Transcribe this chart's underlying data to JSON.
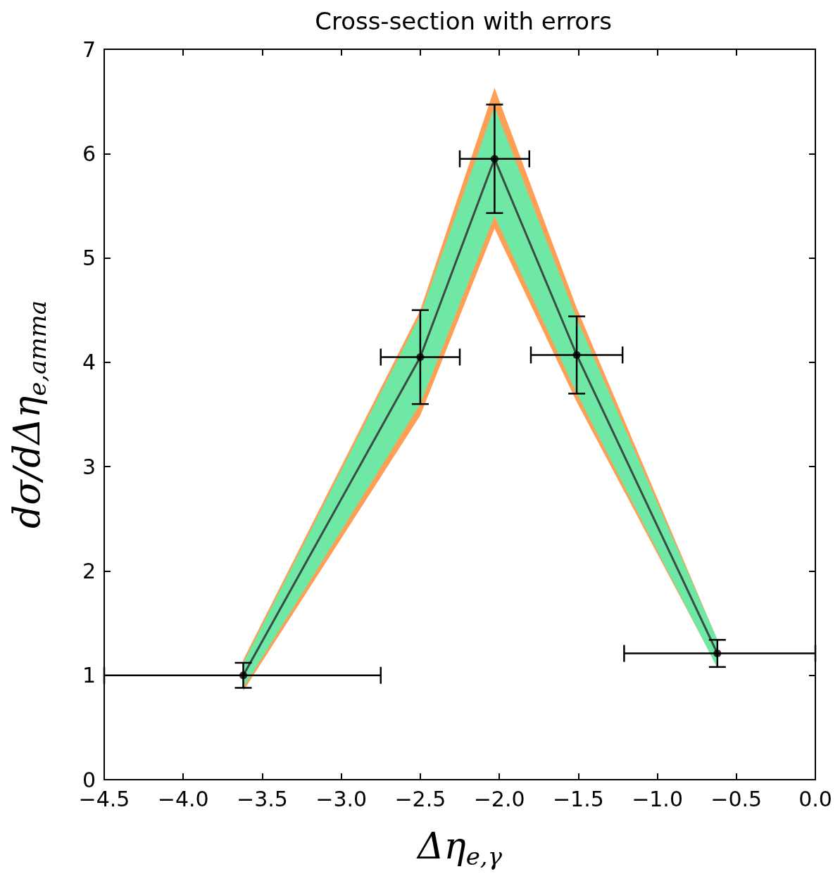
{
  "chart_data": {
    "type": "line",
    "title": "Cross-section with errors",
    "xlabel": "Δη$_{e,γ}$",
    "ylabel": "dσ/dΔη$_{e,amma}$",
    "xlim": [
      -4.5,
      0
    ],
    "ylim": [
      0,
      7
    ],
    "xticks": [
      {
        "value": -4.5,
        "label": "−4.5"
      },
      {
        "value": -4,
        "label": "−4.0"
      },
      {
        "value": -3.5,
        "label": "−3.5"
      },
      {
        "value": -3,
        "label": "−3.0"
      },
      {
        "value": -2.5,
        "label": "−2.5"
      },
      {
        "value": -2,
        "label": "−2.0"
      },
      {
        "value": -1.5,
        "label": "−1.5"
      },
      {
        "value": -1,
        "label": "−1.0"
      },
      {
        "value": -0.5,
        "label": "−0.5"
      },
      {
        "value": 0,
        "label": "0.0"
      }
    ],
    "yticks": [
      0,
      1,
      2,
      3,
      4,
      5,
      6,
      7
    ],
    "grid": false,
    "series": [
      {
        "type": "area",
        "color": "#ff9f55",
        "x": [
          -3.62,
          -2.5,
          -2.03,
          -1.51,
          -0.62
        ],
        "values": [
          null,
          null,
          null,
          null,
          null
        ],
        "lower": [
          0.85,
          3.49,
          5.28,
          3.62,
          1.08
        ],
        "upper": [
          1.15,
          4.5,
          6.63,
          4.52,
          1.34
        ]
      },
      {
        "type": "area",
        "color": "#6ee8a4",
        "x": [
          -3.62,
          -2.5,
          -2.03,
          -1.51,
          -0.62
        ],
        "values": [
          null,
          null,
          null,
          null,
          null
        ],
        "lower": [
          0.88,
          3.6,
          5.4,
          3.7,
          1.07
        ],
        "upper": [
          1.12,
          4.45,
          6.45,
          4.42,
          1.34
        ]
      },
      {
        "color": "#3a4a44",
        "x": [
          -3.62,
          -2.5,
          -2.03,
          -1.51,
          -0.62
        ],
        "values": [
          1.0,
          4.05,
          5.95,
          4.07,
          1.21
        ],
        "marker": "none",
        "line_style": "solid"
      },
      {
        "type": "scatter",
        "color": "#000000",
        "x": [
          -3.62,
          -2.5,
          -2.03,
          -1.51,
          -0.62
        ],
        "values": [
          1.0,
          4.05,
          5.95,
          4.07,
          1.21
        ],
        "marker": "circle",
        "errors": [
          0.12,
          0.45,
          0.52,
          0.37,
          0.13
        ],
        "xerrors": [
          [
            -4.5,
            -2.75
          ],
          0.25,
          0.22,
          0.29,
          [
            -1.21,
            0
          ]
        ]
      }
    ]
  }
}
